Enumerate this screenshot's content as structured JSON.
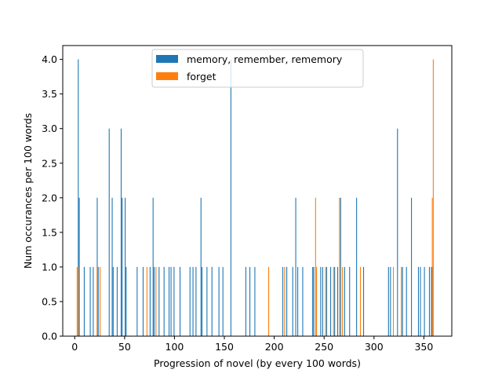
{
  "chart_data": {
    "type": "bar",
    "title": "",
    "xlabel": "Progression of novel (by every 100 words)",
    "ylabel": "Num occurances per 100 words",
    "xlim": [
      -12,
      378
    ],
    "ylim": [
      0,
      4.2
    ],
    "xticks": [
      0,
      50,
      100,
      150,
      200,
      250,
      300,
      350
    ],
    "yticks": [
      0.0,
      0.5,
      1.0,
      1.5,
      2.0,
      2.5,
      3.0,
      3.5,
      4.0
    ],
    "ytick_labels": [
      "0.0",
      "0.5",
      "1.0",
      "1.5",
      "2.0",
      "2.5",
      "3.0",
      "3.5",
      "4.0"
    ],
    "legend_position": "upper center",
    "grid": false,
    "series": [
      {
        "name": "memory, remember, rememory",
        "color": "#1f77b4",
        "x": [
          4,
          5,
          10,
          16,
          19,
          23,
          24,
          35,
          38,
          39,
          43,
          47,
          48,
          51,
          52,
          63,
          69,
          76,
          79,
          80,
          85,
          90,
          95,
          97,
          100,
          106,
          116,
          119,
          122,
          127,
          128,
          133,
          138,
          145,
          149,
          157,
          172,
          176,
          181,
          209,
          213,
          219,
          222,
          224,
          229,
          239,
          240,
          247,
          249,
          253,
          257,
          261,
          264,
          267,
          271,
          276,
          283,
          290,
          315,
          317,
          324,
          329,
          333,
          338,
          345,
          347,
          351,
          356,
          358,
          359
        ],
        "values": [
          4,
          2,
          1,
          1,
          1,
          2,
          1,
          3,
          2,
          1,
          1,
          3,
          2,
          2,
          1,
          1,
          1,
          1,
          2,
          1,
          1,
          1,
          1,
          1,
          1,
          1,
          1,
          1,
          1,
          2,
          1,
          1,
          1,
          1,
          1,
          4,
          1,
          1,
          1,
          1,
          1,
          1,
          2,
          1,
          1,
          1,
          1,
          1,
          1,
          1,
          1,
          1,
          1,
          2,
          1,
          1,
          2,
          1,
          1,
          1,
          3,
          1,
          1,
          2,
          1,
          1,
          1,
          1,
          1,
          1
        ]
      },
      {
        "name": "forget",
        "color": "#ff7f0e",
        "x": [
          2,
          3,
          22,
          25,
          72,
          81,
          194,
          210,
          241,
          242,
          251,
          259,
          265,
          268,
          286,
          319,
          327,
          358,
          359
        ],
        "values": [
          1,
          1,
          1,
          1,
          1,
          1,
          1,
          1,
          2,
          1,
          1,
          1,
          2,
          1,
          1,
          1,
          1,
          2,
          4
        ]
      }
    ]
  }
}
